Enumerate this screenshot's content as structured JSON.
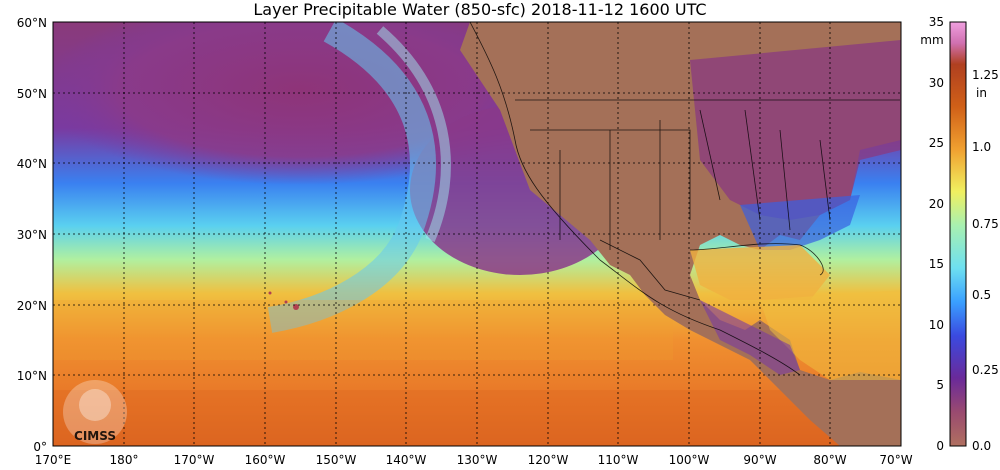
{
  "title": "Layer Precipitable Water (850-sfc)  2018-11-12 1600 UTC",
  "map": {
    "lat_labels": [
      "60°N",
      "50°N",
      "40°N",
      "30°N",
      "20°N",
      "10°N",
      "0°"
    ],
    "lon_labels": [
      "170°E",
      "180°",
      "170°W",
      "160°W",
      "150°W",
      "140°W",
      "130°W",
      "120°W",
      "110°W",
      "100°W",
      "90°W",
      "80°W",
      "70°W"
    ],
    "extent": {
      "lon_min": 170,
      "lon_max": 290,
      "lat_min": 0,
      "lat_max": 60
    }
  },
  "colorbar": {
    "mm_unit": "mm",
    "in_unit": "in",
    "mm_ticks": [
      "35",
      "30",
      "25",
      "20",
      "15",
      "10",
      "5",
      "0"
    ],
    "in_ticks": [
      "1.25",
      "1.0",
      "0.75",
      "0.5",
      "0.25",
      "0.0"
    ],
    "colors": [
      "#b07060",
      "#8a3a7a",
      "#6a2a9a",
      "#3a4ae0",
      "#3aa0ff",
      "#6ee0f0",
      "#a8f0b0",
      "#f0f060",
      "#f0a030",
      "#d06018",
      "#b04020",
      "#d070b0",
      "#f0a0e0"
    ]
  },
  "logo": {
    "text": "CIMSS"
  }
}
